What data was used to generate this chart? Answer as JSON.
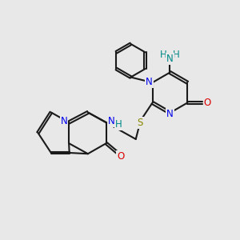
{
  "bg_color": "#e8e8e8",
  "bond_color": "#1a1a1a",
  "bw": 1.5,
  "dbo": 0.055,
  "N_color": "#0000ee",
  "O_color": "#dd0000",
  "S_color": "#888800",
  "NH_color": "#008888",
  "fs": 8.5,
  "xlim": [
    0,
    10
  ],
  "ylim": [
    0,
    10
  ]
}
